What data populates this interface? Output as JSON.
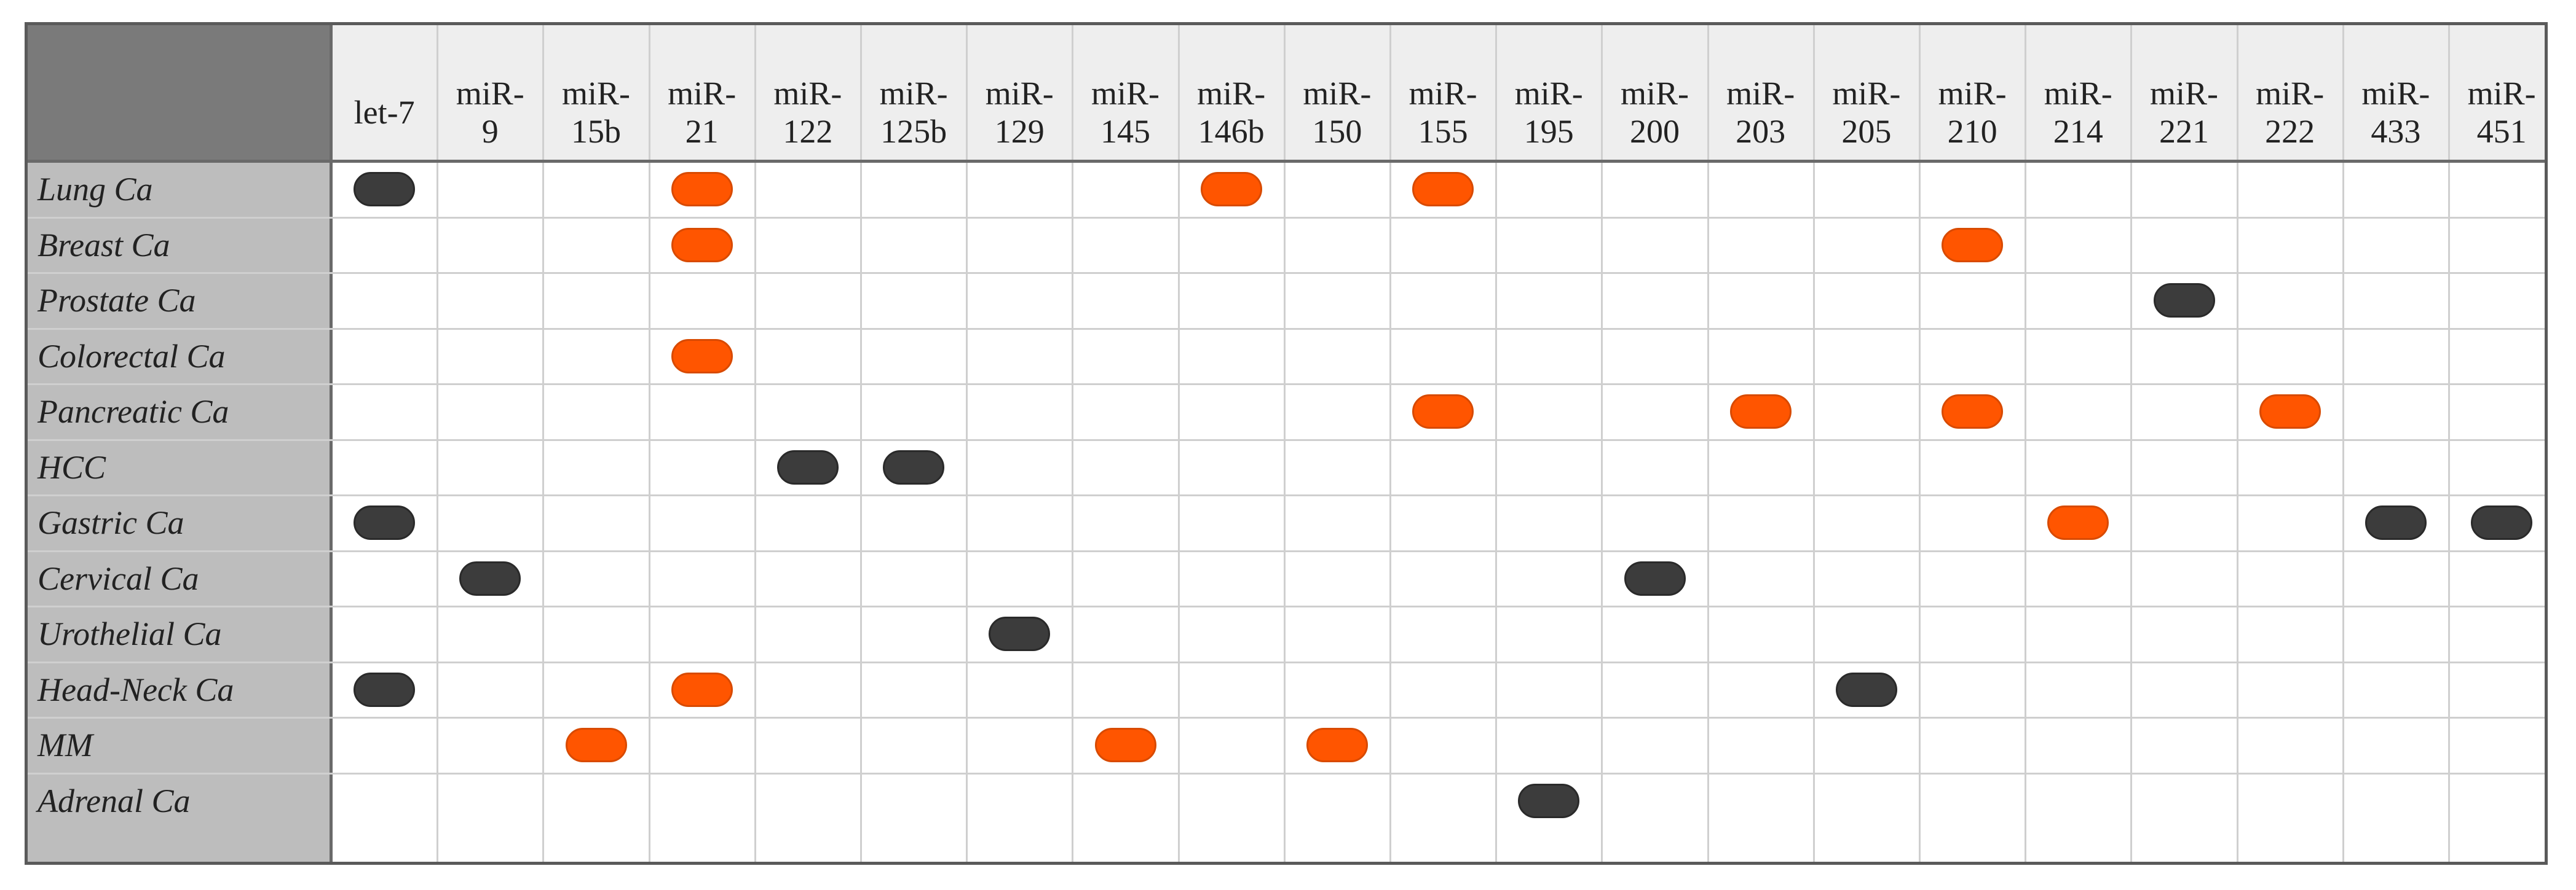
{
  "table": {
    "columns": [
      "let-7",
      "miR-\n9",
      "miR-\n15b",
      "miR-\n21",
      "miR-\n122",
      "miR-\n125b",
      "miR-\n129",
      "miR-\n145",
      "miR-\n146b",
      "miR-\n150",
      "miR-\n155",
      "miR-\n195",
      "miR-\n200",
      "miR-\n203",
      "miR-\n205",
      "miR-\n210",
      "miR-\n214",
      "miR-\n221",
      "miR-\n222",
      "miR-\n433",
      "miR-\n451"
    ],
    "rows": [
      "Lung Ca",
      "Breast Ca",
      "Prostate Ca",
      "Colorectal Ca",
      "Pancreatic Ca",
      "HCC",
      "Gastric Ca",
      "Cervical Ca",
      "Urothelial Ca",
      "Head-Neck Ca",
      "MM",
      "Adrenal Ca"
    ],
    "marker_colors": {
      "orange": "#ff5500",
      "dark": "#3c3c3c"
    },
    "cells": [
      [
        [
          "let-7",
          "dark"
        ],
        [
          "miR-21",
          "orange"
        ],
        [
          "miR-146b",
          "orange"
        ],
        [
          "miR-155",
          "orange"
        ]
      ],
      [
        [
          "miR-21",
          "orange"
        ],
        [
          "miR-210",
          "orange"
        ]
      ],
      [
        [
          "miR-221",
          "dark"
        ]
      ],
      [
        [
          "miR-21",
          "orange"
        ]
      ],
      [
        [
          "miR-155",
          "orange"
        ],
        [
          "miR-203",
          "orange"
        ],
        [
          "miR-210",
          "orange"
        ],
        [
          "miR-222",
          "orange"
        ]
      ],
      [
        [
          "miR-122",
          "dark"
        ],
        [
          "miR-125b",
          "dark"
        ]
      ],
      [
        [
          "let-7",
          "dark"
        ],
        [
          "miR-214",
          "orange"
        ],
        [
          "miR-433",
          "dark"
        ],
        [
          "miR-451",
          "dark"
        ]
      ],
      [
        [
          "miR-9",
          "dark"
        ],
        [
          "miR-200",
          "dark"
        ]
      ],
      [
        [
          "miR-129",
          "dark"
        ]
      ],
      [
        [
          "let-7",
          "dark"
        ],
        [
          "miR-21",
          "orange"
        ],
        [
          "miR-205",
          "dark"
        ]
      ],
      [
        [
          "miR-15b",
          "orange"
        ],
        [
          "miR-145",
          "orange"
        ],
        [
          "miR-150",
          "orange"
        ]
      ],
      [
        [
          "miR-195",
          "dark"
        ]
      ]
    ]
  }
}
